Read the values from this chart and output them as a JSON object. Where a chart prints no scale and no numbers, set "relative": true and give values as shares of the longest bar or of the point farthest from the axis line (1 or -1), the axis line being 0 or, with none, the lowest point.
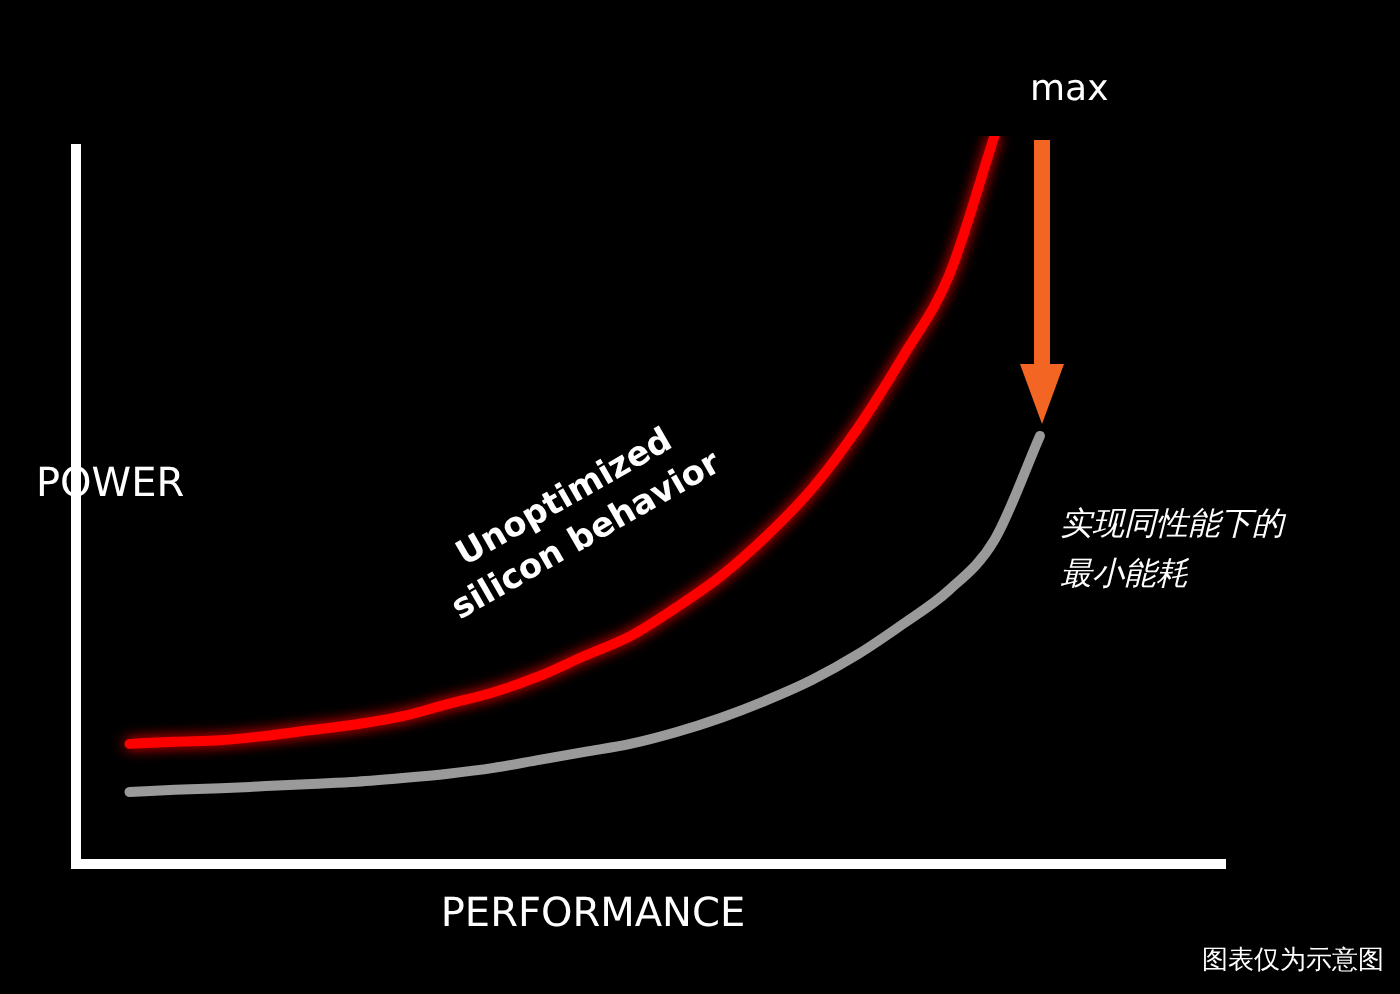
{
  "chart_data": {
    "type": "line",
    "relative": true,
    "xlabel": "PERFORMANCE",
    "ylabel": "POWER",
    "categories": [
      null,
      null,
      null,
      null,
      null,
      null,
      null,
      null,
      null,
      null,
      null,
      null,
      null,
      null,
      null,
      null,
      null,
      null,
      null,
      null,
      null,
      null,
      null,
      null,
      null,
      null
    ],
    "series": [
      {
        "name": "Unoptimized silicon behavior",
        "color": "#ff0000",
        "values": [
          null,
          0.165,
          0.168,
          0.17,
          0.176,
          0.184,
          0.192,
          0.203,
          0.22,
          0.236,
          0.258,
          0.286,
          0.313,
          0.352,
          0.396,
          0.451,
          0.516,
          0.599,
          0.698,
          0.808,
          1,
          null,
          null,
          null,
          null,
          null
        ]
      },
      {
        "name": "实现同性能下的最小能耗",
        "color": "#9a9a9a",
        "values": [
          null,
          0.099,
          0.102,
          0.104,
          0.107,
          0.11,
          0.113,
          0.118,
          0.124,
          0.132,
          0.143,
          0.154,
          0.165,
          0.181,
          0.201,
          0.225,
          0.253,
          0.288,
          0.33,
          0.376,
          0.445,
          0.588,
          null,
          null,
          null,
          null
        ]
      }
    ],
    "annotations": [
      "max",
      "图表仅为示意图"
    ],
    "legend": false,
    "marker": "none",
    "line_style": "solid"
  }
}
